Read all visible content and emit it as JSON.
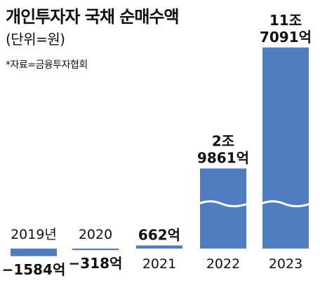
{
  "chart_data": {
    "type": "bar",
    "title": "개인투자자 국채 순매수액",
    "unit": "(단위=원)",
    "source": "*자료=금융투자협회",
    "categories": [
      "2019년",
      "2020",
      "2021",
      "2022",
      "2023"
    ],
    "values_eok": [
      -1584,
      -318,
      662,
      29861,
      117091
    ],
    "value_labels": [
      "−1584억",
      "−318억",
      "662억",
      "2조\n9861억",
      "11조\n7091억"
    ],
    "axis_break": true,
    "color": "#4f7dbe"
  }
}
